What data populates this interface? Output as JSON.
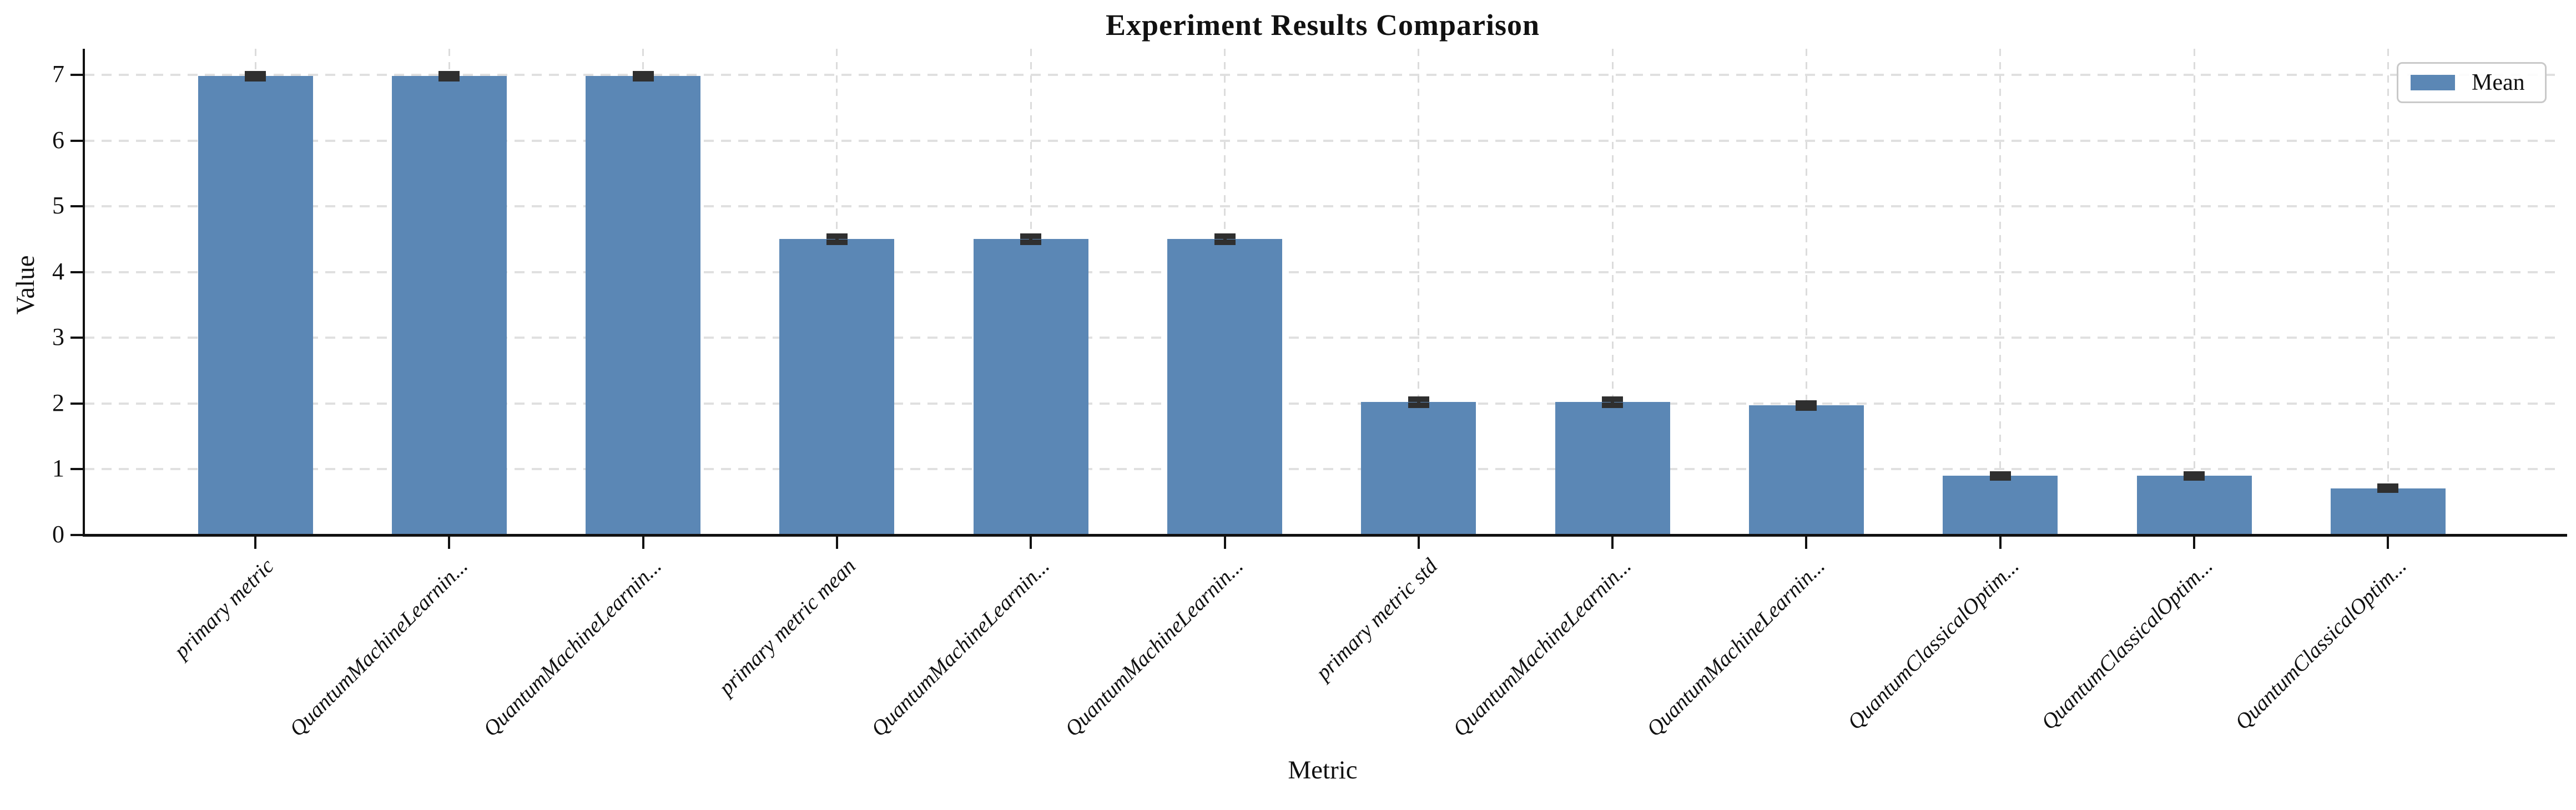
{
  "chart_data": {
    "type": "bar",
    "title": "Experiment Results Comparison",
    "xlabel": "Metric",
    "ylabel": "Value",
    "ylim": [
      0,
      7.4
    ],
    "yticks": [
      0,
      1,
      2,
      3,
      4,
      5,
      6,
      7
    ],
    "grid": true,
    "legend": {
      "label": "Mean",
      "position": "upper right"
    },
    "categories": [
      "primary metric",
      "QuantumMachineLearnin...",
      "QuantumMachineLearnin...",
      "primary metric mean",
      "QuantumMachineLearnin...",
      "QuantumMachineLearnin...",
      "primary metric std",
      "QuantumMachineLearnin...",
      "QuantumMachineLearnin...",
      "QuantumClassicalOptim...",
      "QuantumClassicalOptim...",
      "QuantumClassicalOptim..."
    ],
    "series": [
      {
        "name": "Mean",
        "values": [
          6.98,
          6.98,
          6.98,
          4.5,
          4.5,
          4.5,
          2.02,
          2.02,
          1.97,
          0.9,
          0.9,
          0.71
        ],
        "errors": [
          0.04,
          0.04,
          0.04,
          0.05,
          0.05,
          0.05,
          0.05,
          0.05,
          0.04,
          0.03,
          0.03,
          0.03
        ]
      }
    ],
    "colors": {
      "bar": "#5b87b5",
      "error": "#2f2f2f",
      "grid": "#e0e0e0",
      "axis": "#111111",
      "legend_border": "#c9c9c9"
    }
  }
}
